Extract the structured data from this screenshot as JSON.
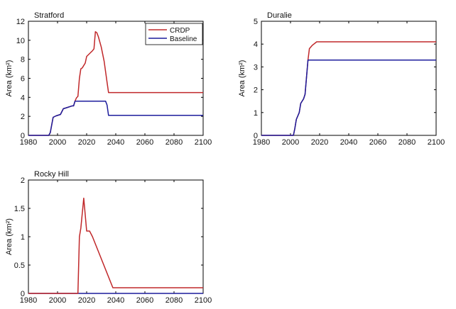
{
  "chart_data": [
    {
      "type": "line",
      "title": "Stratford",
      "xlabel": "",
      "ylabel": "Area (km²)",
      "xlim": [
        1980,
        2100
      ],
      "ylim": [
        0,
        12
      ],
      "xticks": [
        1980,
        2000,
        2020,
        2040,
        2060,
        2080,
        2100
      ],
      "yticks": [
        0,
        2,
        4,
        6,
        8,
        10,
        12
      ],
      "legend": {
        "position": "top-right",
        "entries": [
          "CRDP",
          "Baseline"
        ]
      },
      "series": [
        {
          "name": "CRDP",
          "color": "#c0282a",
          "points": [
            [
              1980,
              0
            ],
            [
              1994,
              0
            ],
            [
              1995,
              0.3
            ],
            [
              1997,
              1.9
            ],
            [
              1999,
              2.05
            ],
            [
              2002,
              2.2
            ],
            [
              2004,
              2.8
            ],
            [
              2006,
              2.9
            ],
            [
              2010,
              3.1
            ],
            [
              2011,
              3.1
            ],
            [
              2012,
              3.6
            ],
            [
              2013,
              3.95
            ],
            [
              2014,
              4.1
            ],
            [
              2015,
              6.0
            ],
            [
              2016,
              7.0
            ],
            [
              2017,
              7.1
            ],
            [
              2019,
              7.6
            ],
            [
              2020,
              8.3
            ],
            [
              2022,
              8.6
            ],
            [
              2024,
              8.9
            ],
            [
              2025,
              9.1
            ],
            [
              2026,
              10.9
            ],
            [
              2027,
              10.8
            ],
            [
              2028,
              10.4
            ],
            [
              2030,
              9.3
            ],
            [
              2032,
              7.8
            ],
            [
              2034,
              5.6
            ],
            [
              2035,
              4.5
            ],
            [
              2100,
              4.5
            ]
          ]
        },
        {
          "name": "Baseline",
          "color": "#1c1c9c",
          "points": [
            [
              1980,
              0
            ],
            [
              1994,
              0
            ],
            [
              1995,
              0.3
            ],
            [
              1997,
              1.9
            ],
            [
              1999,
              2.05
            ],
            [
              2002,
              2.2
            ],
            [
              2004,
              2.8
            ],
            [
              2006,
              2.9
            ],
            [
              2010,
              3.1
            ],
            [
              2011,
              3.1
            ],
            [
              2012,
              3.6
            ],
            [
              2033,
              3.6
            ],
            [
              2034,
              3.2
            ],
            [
              2035,
              2.1
            ],
            [
              2100,
              2.1
            ]
          ]
        }
      ]
    },
    {
      "type": "line",
      "title": "Duralie",
      "xlabel": "",
      "ylabel": "Area (km²)",
      "xlim": [
        1980,
        2100
      ],
      "ylim": [
        0,
        5
      ],
      "xticks": [
        1980,
        2000,
        2020,
        2040,
        2060,
        2080,
        2100
      ],
      "yticks": [
        0,
        1,
        2,
        3,
        4,
        5
      ],
      "series": [
        {
          "name": "CRDP",
          "color": "#c0282a",
          "points": [
            [
              1980,
              0
            ],
            [
              2002,
              0
            ],
            [
              2003,
              0.3
            ],
            [
              2004,
              0.7
            ],
            [
              2006,
              1.0
            ],
            [
              2007,
              1.4
            ],
            [
              2009,
              1.6
            ],
            [
              2010,
              1.8
            ],
            [
              2012,
              3.3
            ],
            [
              2013,
              3.8
            ],
            [
              2015,
              3.95
            ],
            [
              2018,
              4.1
            ],
            [
              2100,
              4.1
            ]
          ]
        },
        {
          "name": "Baseline",
          "color": "#1c1c9c",
          "points": [
            [
              1980,
              0
            ],
            [
              2002,
              0
            ],
            [
              2003,
              0.3
            ],
            [
              2004,
              0.7
            ],
            [
              2006,
              1.0
            ],
            [
              2007,
              1.4
            ],
            [
              2009,
              1.6
            ],
            [
              2010,
              1.8
            ],
            [
              2012,
              3.3
            ],
            [
              2100,
              3.3
            ]
          ]
        }
      ]
    },
    {
      "type": "line",
      "title": "Rocky Hill",
      "xlabel": "",
      "ylabel": "Area (km²)",
      "xlim": [
        1980,
        2100
      ],
      "ylim": [
        0,
        2
      ],
      "xticks": [
        1980,
        2000,
        2020,
        2040,
        2060,
        2080,
        2100
      ],
      "yticks": [
        0,
        0.5,
        1,
        1.5,
        2
      ],
      "series": [
        {
          "name": "Baseline",
          "color": "#1c1c9c",
          "points": [
            [
              1980,
              0
            ],
            [
              2100,
              0
            ]
          ]
        },
        {
          "name": "CRDP",
          "color": "#c0282a",
          "points": [
            [
              1980,
              0
            ],
            [
              2014,
              0
            ],
            [
              2015,
              1.0
            ],
            [
              2016,
              1.15
            ],
            [
              2018,
              1.68
            ],
            [
              2020,
              1.1
            ],
            [
              2022,
              1.1
            ],
            [
              2024,
              1.0
            ],
            [
              2038,
              0.1
            ],
            [
              2100,
              0.1
            ]
          ]
        }
      ]
    }
  ]
}
